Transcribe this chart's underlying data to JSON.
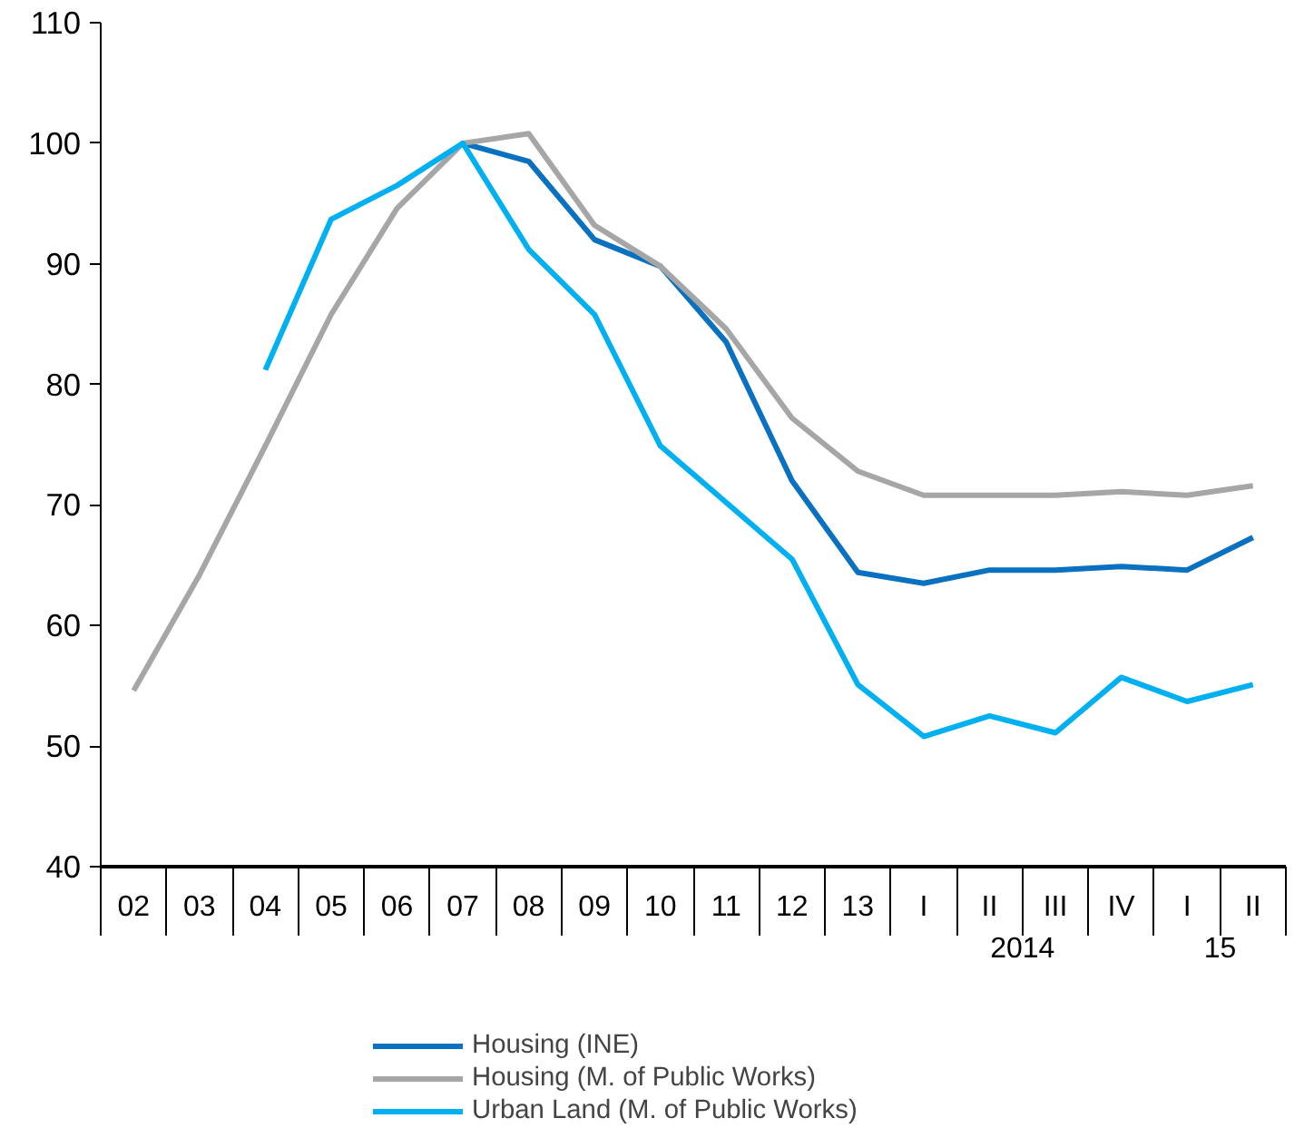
{
  "chart_data": {
    "type": "line",
    "categories": [
      "02",
      "03",
      "04",
      "05",
      "06",
      "07",
      "08",
      "09",
      "10",
      "11",
      "12",
      "13",
      "I",
      "II",
      "III",
      "IV",
      "I",
      "II"
    ],
    "series": [
      {
        "name": "Housing (INE)",
        "color": "#0a70c0",
        "values": [
          null,
          null,
          null,
          null,
          null,
          100,
          98.5,
          92,
          89.8,
          83.5,
          72,
          64.4,
          63.5,
          64.6,
          64.6,
          64.9,
          64.6,
          67.3
        ]
      },
      {
        "name": "Housing (M. of Public Works)",
        "color": "#a6a6a6",
        "values": [
          54.6,
          64.2,
          74.9,
          85.8,
          94.6,
          100,
          100.8,
          93.2,
          89.8,
          84.6,
          77.2,
          72.8,
          70.8,
          70.8,
          70.8,
          71.1,
          70.8,
          71.6
        ]
      },
      {
        "name": "Urban Land (M. of Public Works)",
        "color": "#00b0f0",
        "values": [
          null,
          null,
          81.2,
          93.7,
          96.5,
          100,
          91.2,
          85.8,
          74.9,
          70.2,
          65.5,
          55.1,
          50.8,
          52.5,
          51.1,
          55.7,
          53.7,
          55.1
        ]
      }
    ],
    "ylim": [
      40,
      110
    ],
    "yticks": [
      40,
      50,
      60,
      70,
      80,
      90,
      100,
      110
    ],
    "annotations": [
      "2014",
      "15"
    ],
    "grid": false,
    "legend": "bottom",
    "marker": "none",
    "line_style": "solid"
  }
}
